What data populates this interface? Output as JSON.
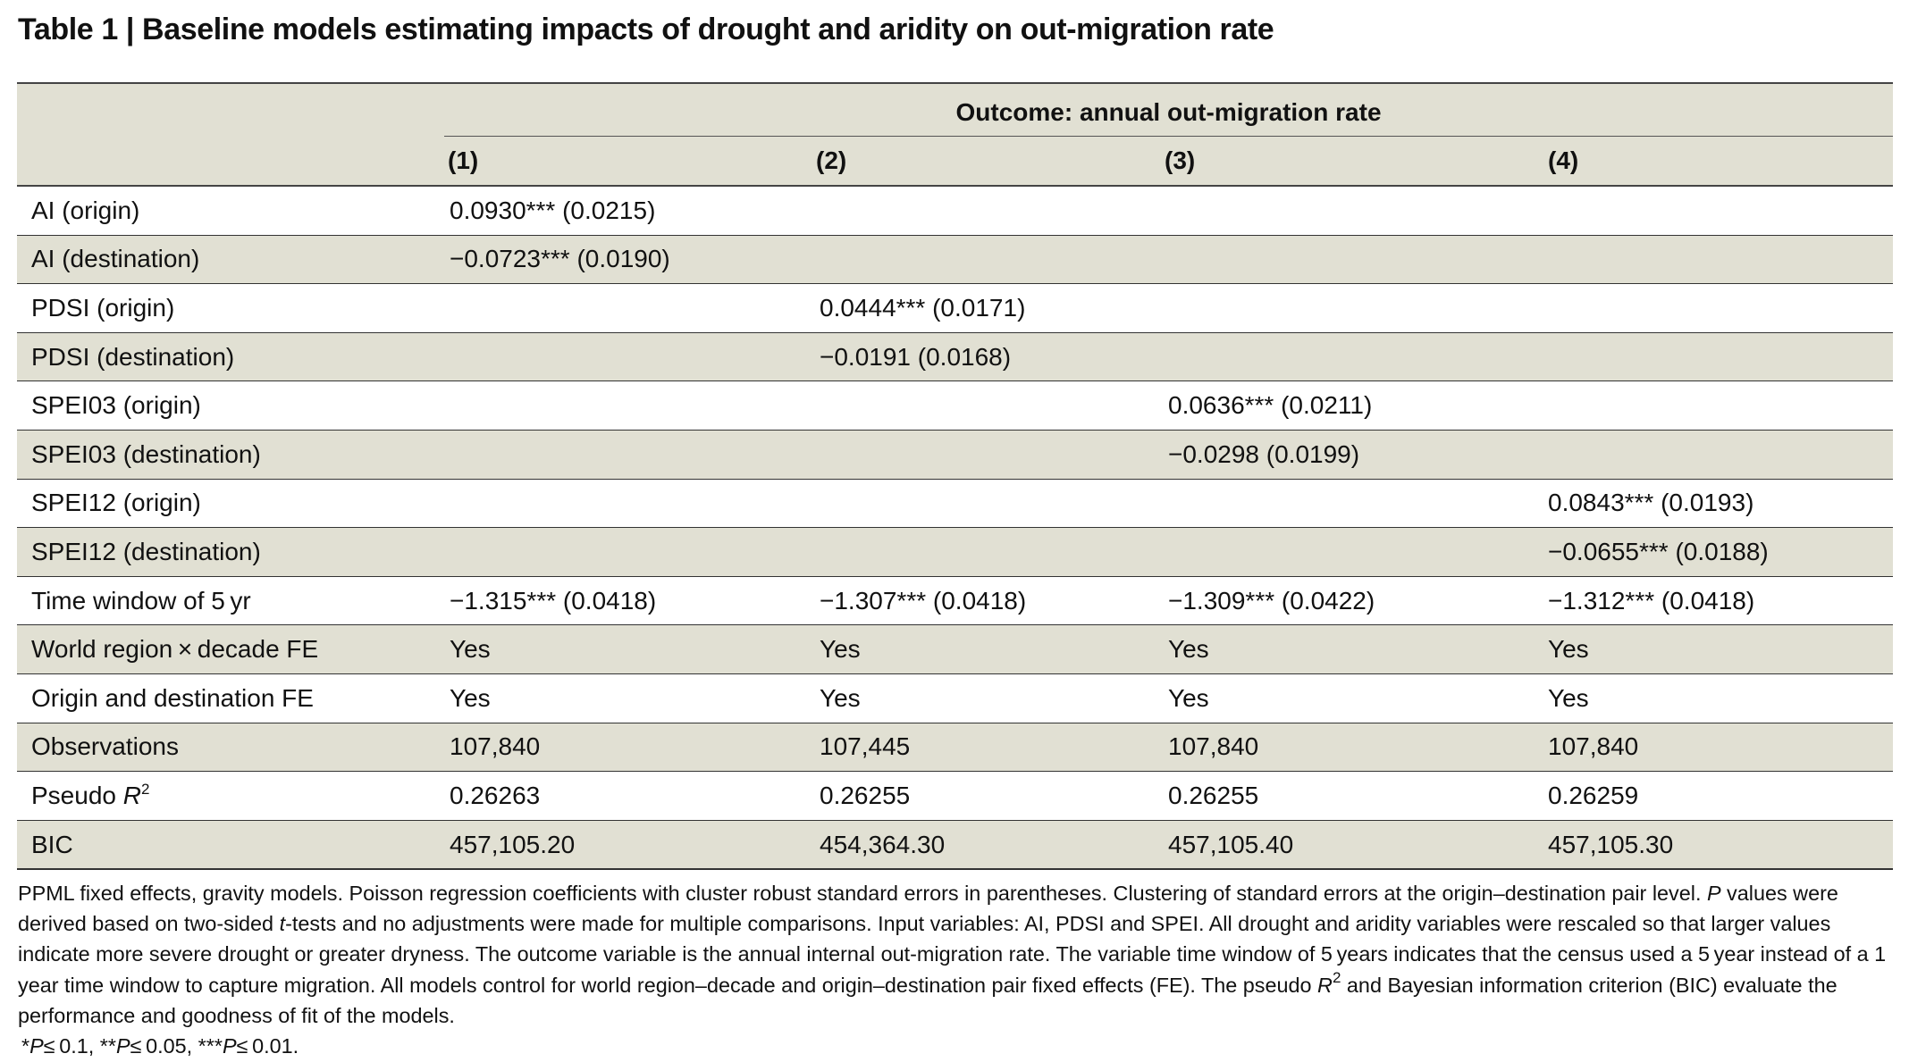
{
  "title": "Table 1 | Baseline models estimating impacts of drought and aridity on out-migration rate",
  "header": {
    "outcome": "Outcome: annual out-migration rate",
    "columns": [
      "(1)",
      "(2)",
      "(3)",
      "(4)"
    ]
  },
  "rows": [
    {
      "label": "AI (origin)",
      "cells": [
        "0.0930*** (0.0215)",
        "",
        "",
        ""
      ]
    },
    {
      "label": "AI (destination)",
      "cells": [
        "−0.0723*** (0.0190)",
        "",
        "",
        ""
      ]
    },
    {
      "label": "PDSI (origin)",
      "cells": [
        "",
        "0.0444*** (0.0171)",
        "",
        ""
      ]
    },
    {
      "label": "PDSI (destination)",
      "cells": [
        "",
        "−0.0191 (0.0168)",
        "",
        ""
      ]
    },
    {
      "label": "SPEI03 (origin)",
      "cells": [
        "",
        "",
        "0.0636*** (0.0211)",
        ""
      ]
    },
    {
      "label": "SPEI03 (destination)",
      "cells": [
        "",
        "",
        "−0.0298 (0.0199)",
        ""
      ]
    },
    {
      "label": "SPEI12 (origin)",
      "cells": [
        "",
        "",
        "",
        "0.0843*** (0.0193)"
      ]
    },
    {
      "label": "SPEI12 (destination)",
      "cells": [
        "",
        "",
        "",
        "−0.0655*** (0.0188)"
      ]
    },
    {
      "label": "Time window of 5 yr",
      "cells": [
        "−1.315*** (0.0418)",
        "−1.307*** (0.0418)",
        "−1.309*** (0.0422)",
        "−1.312*** (0.0418)"
      ]
    },
    {
      "label": "World region × decade FE",
      "cells": [
        "Yes",
        "Yes",
        "Yes",
        "Yes"
      ]
    },
    {
      "label": "Origin and destination FE",
      "cells": [
        "Yes",
        "Yes",
        "Yes",
        "Yes"
      ]
    },
    {
      "label": "Observations",
      "cells": [
        "107,840",
        "107,445",
        "107,840",
        "107,840"
      ]
    },
    {
      "label": "Pseudo R",
      "label_sup": "2",
      "cells": [
        "0.26263",
        "0.26255",
        "0.26255",
        "0.26259"
      ]
    },
    {
      "label": "BIC",
      "cells": [
        "457,105.20",
        "454,364.30",
        "457,105.40",
        "457,105.30"
      ]
    }
  ],
  "notes": {
    "part1": "PPML fixed effects, gravity models. Poisson regression coefficients with cluster robust standard errors in parentheses. Clustering of standard errors at the origin–destination pair level. ",
    "p_italic": "P",
    "part2": " values were derived based on two-sided ",
    "t_italic": "t",
    "part3": "-tests and no adjustments were made for multiple comparisons. Input variables: AI, PDSI and SPEI. All drought and aridity variables were rescaled so that larger values indicate more severe drought or greater dryness. The outcome variable is the annual internal out-migration rate. The variable time window of 5 years indicates that the census used a 5 year instead of a 1 year time window to capture migration. All models control for world region–decade and origin–destination pair fixed effects (FE). The pseudo ",
    "r_italic": "R",
    "r_sup": "2",
    "part4": " and Bayesian information criterion (BIC) evaluate the performance and goodness of fit of the models.",
    "significance": [
      {
        "stars": "*",
        "p": "P",
        "rest": "≤ 0.1, "
      },
      {
        "stars": "**",
        "p": "P",
        "rest": "≤ 0.05, "
      },
      {
        "stars": "***",
        "p": "P",
        "rest": "≤ 0.01."
      }
    ]
  }
}
